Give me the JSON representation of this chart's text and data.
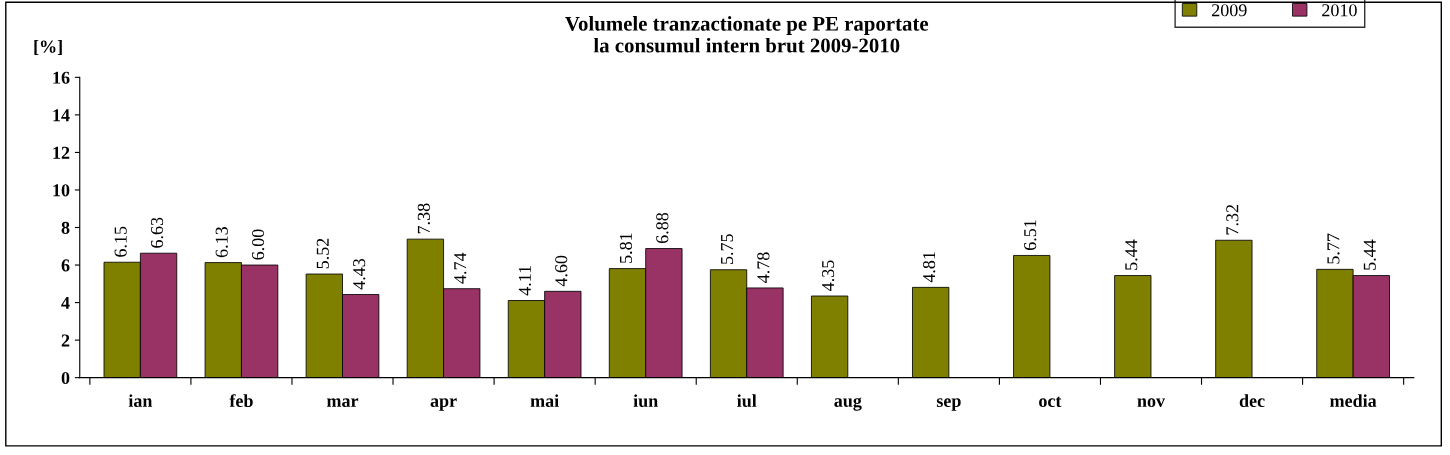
{
  "chart_data": {
    "type": "bar",
    "title": "Volumele tranzactionate pe PE raportate\nla consumul intern brut 2009-2010",
    "ylabel": "[%]",
    "categories": [
      "ian",
      "feb",
      "mar",
      "apr",
      "mai",
      "iun",
      "iul",
      "aug",
      "sep",
      "oct",
      "nov",
      "dec",
      "media"
    ],
    "series": [
      {
        "name": "2009",
        "color": "#808000",
        "values": [
          6.15,
          6.13,
          5.52,
          7.38,
          4.11,
          5.81,
          5.75,
          4.35,
          4.81,
          6.51,
          5.44,
          7.32,
          5.77
        ],
        "value_labels": [
          "6.15",
          "6.13",
          "5.52",
          "7.38",
          "4.11",
          "5.81",
          "5.75",
          "4.35",
          "4.81",
          "6.51",
          "5.44",
          "7.32",
          "5.77"
        ]
      },
      {
        "name": "2010",
        "color": "#993366",
        "values": [
          6.63,
          6.0,
          4.43,
          4.74,
          4.6,
          6.88,
          4.78,
          null,
          null,
          null,
          null,
          null,
          5.44
        ],
        "value_labels": [
          "6.63",
          "6.00",
          "4.43",
          "4.74",
          "4.60",
          "6.88",
          "4.78",
          null,
          null,
          null,
          null,
          null,
          "5.44"
        ]
      }
    ],
    "ylim": [
      0,
      16
    ],
    "yticks": [
      0,
      2,
      4,
      6,
      8,
      10,
      12,
      14,
      16
    ],
    "grid": false,
    "legend": "top right"
  }
}
